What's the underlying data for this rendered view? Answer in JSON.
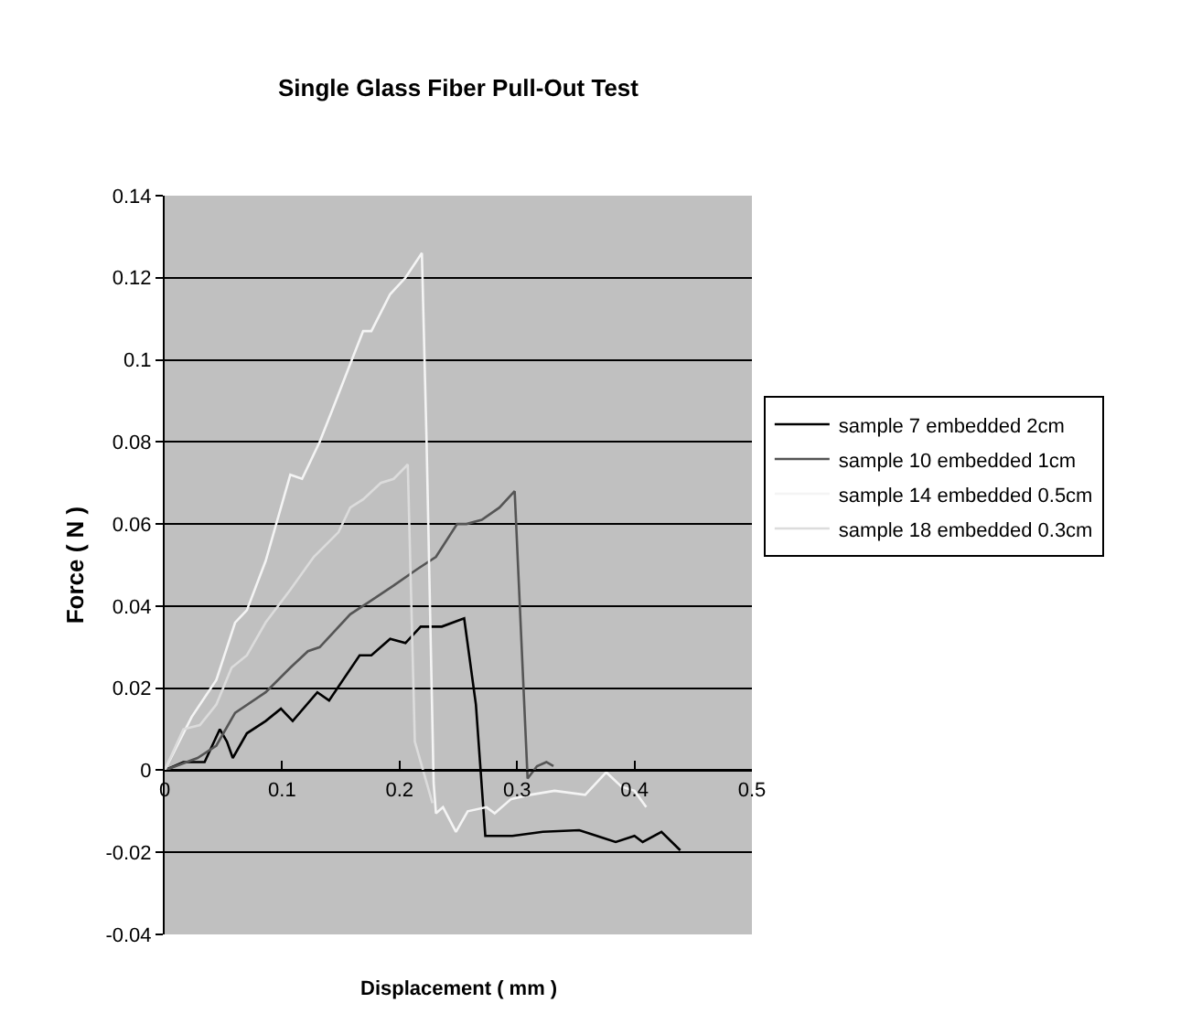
{
  "chart_data": {
    "type": "line",
    "title": "Single Glass Fiber Pull-Out Test",
    "xlabel": "Displacement ( mm )",
    "ylabel": "Force ( N )",
    "xlim": [
      0,
      0.5
    ],
    "xticks": [
      0,
      0.1,
      0.2,
      0.3,
      0.4,
      0.5
    ],
    "ylim": [
      -0.04,
      0.14
    ],
    "yticks": [
      -0.04,
      -0.02,
      0,
      0.02,
      0.04,
      0.06,
      0.08,
      0.1,
      0.12,
      0.14
    ],
    "grid": "y",
    "legend": "right",
    "marker": "none",
    "line_style": "solid",
    "series": [
      {
        "name": "sample 7 embedded 2cm",
        "color": "#000000",
        "x": [
          0,
          0.016,
          0.034,
          0.047,
          0.053,
          0.058,
          0.07,
          0.086,
          0.099,
          0.109,
          0.13,
          0.14,
          0.166,
          0.176,
          0.192,
          0.205,
          0.218,
          0.236,
          0.255,
          0.265,
          0.273,
          0.296,
          0.322,
          0.353,
          0.368,
          0.384,
          0.4,
          0.407,
          0.423,
          0.439
        ],
        "values": [
          0,
          0.002,
          0.002,
          0.01,
          0.007,
          0.003,
          0.009,
          0.012,
          0.015,
          0.012,
          0.019,
          0.017,
          0.028,
          0.028,
          0.032,
          0.031,
          0.035,
          0.035,
          0.037,
          0.016,
          -0.016,
          -0.016,
          -0.015,
          -0.0146,
          -0.016,
          -0.0175,
          -0.016,
          -0.0175,
          -0.015,
          -0.0195
        ]
      },
      {
        "name": "sample 10 embedded 1cm",
        "color": "#555555",
        "x": [
          0,
          0.028,
          0.044,
          0.06,
          0.086,
          0.107,
          0.122,
          0.132,
          0.158,
          0.174,
          0.195,
          0.215,
          0.231,
          0.249,
          0.257,
          0.27,
          0.285,
          0.298,
          0.309,
          0.317,
          0.325,
          0.331
        ],
        "values": [
          0,
          0.003,
          0.006,
          0.014,
          0.019,
          0.025,
          0.029,
          0.03,
          0.038,
          0.041,
          0.045,
          0.049,
          0.052,
          0.06,
          0.06,
          0.061,
          0.064,
          0.068,
          -0.002,
          0.001,
          0.002,
          0.001
        ]
      },
      {
        "name": "sample 14 embedded 0.5cm",
        "color": "#f4f4f4",
        "x": [
          0,
          0.023,
          0.044,
          0.06,
          0.07,
          0.086,
          0.107,
          0.117,
          0.132,
          0.143,
          0.158,
          0.169,
          0.176,
          0.192,
          0.205,
          0.219,
          0.223,
          0.229,
          0.231,
          0.237,
          0.248,
          0.258,
          0.274,
          0.281,
          0.295,
          0.311,
          0.332,
          0.358,
          0.376,
          0.389,
          0.4,
          0.41
        ],
        "values": [
          0,
          0.013,
          0.022,
          0.036,
          0.039,
          0.051,
          0.072,
          0.071,
          0.08,
          0.088,
          0.099,
          0.107,
          0.107,
          0.116,
          0.12,
          0.126,
          0.08,
          -0.003,
          -0.0105,
          -0.009,
          -0.015,
          -0.01,
          -0.009,
          -0.0105,
          -0.007,
          -0.006,
          -0.005,
          -0.006,
          -0.0005,
          -0.004,
          -0.005,
          -0.009
        ]
      },
      {
        "name": "sample 18 embedded 0.3cm",
        "color": "#dcdcdc",
        "x": [
          0,
          0.016,
          0.03,
          0.044,
          0.057,
          0.07,
          0.086,
          0.107,
          0.127,
          0.148,
          0.158,
          0.169,
          0.184,
          0.195,
          0.207,
          0.213,
          0.223,
          0.228
        ],
        "values": [
          0,
          0.01,
          0.011,
          0.016,
          0.025,
          0.028,
          0.036,
          0.044,
          0.052,
          0.058,
          0.064,
          0.066,
          0.07,
          0.071,
          0.0745,
          0.007,
          -0.003,
          -0.008
        ]
      }
    ]
  }
}
